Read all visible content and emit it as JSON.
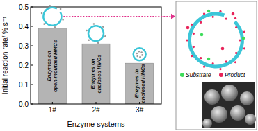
{
  "chart_data": {
    "type": "bar",
    "y_label": "Initial reaction rate/ % s⁻¹",
    "x_label": "Enzyme systems",
    "categories": [
      "1#",
      "2#",
      "3#"
    ],
    "values": [
      0.39,
      0.31,
      0.21
    ],
    "color": "#b4b4b4",
    "ylim": [
      0,
      0.5
    ],
    "yticks": [
      {
        "value": 0,
        "label": "0.0"
      },
      0.1,
      0.2,
      0.3,
      0.4,
      0.5
    ],
    "grid": false,
    "annotations": [
      [
        "Enzymes on",
        "open-mouthed HMCs"
      ],
      [
        "Enzymes on",
        "enclosed HMCs"
      ],
      [
        "Enzymes in",
        "enclosed HMCs"
      ]
    ]
  },
  "inset": {
    "labels": [
      "Substrate",
      "Product"
    ],
    "colors": [
      "#3ddc5a",
      "#e8245a"
    ]
  }
}
